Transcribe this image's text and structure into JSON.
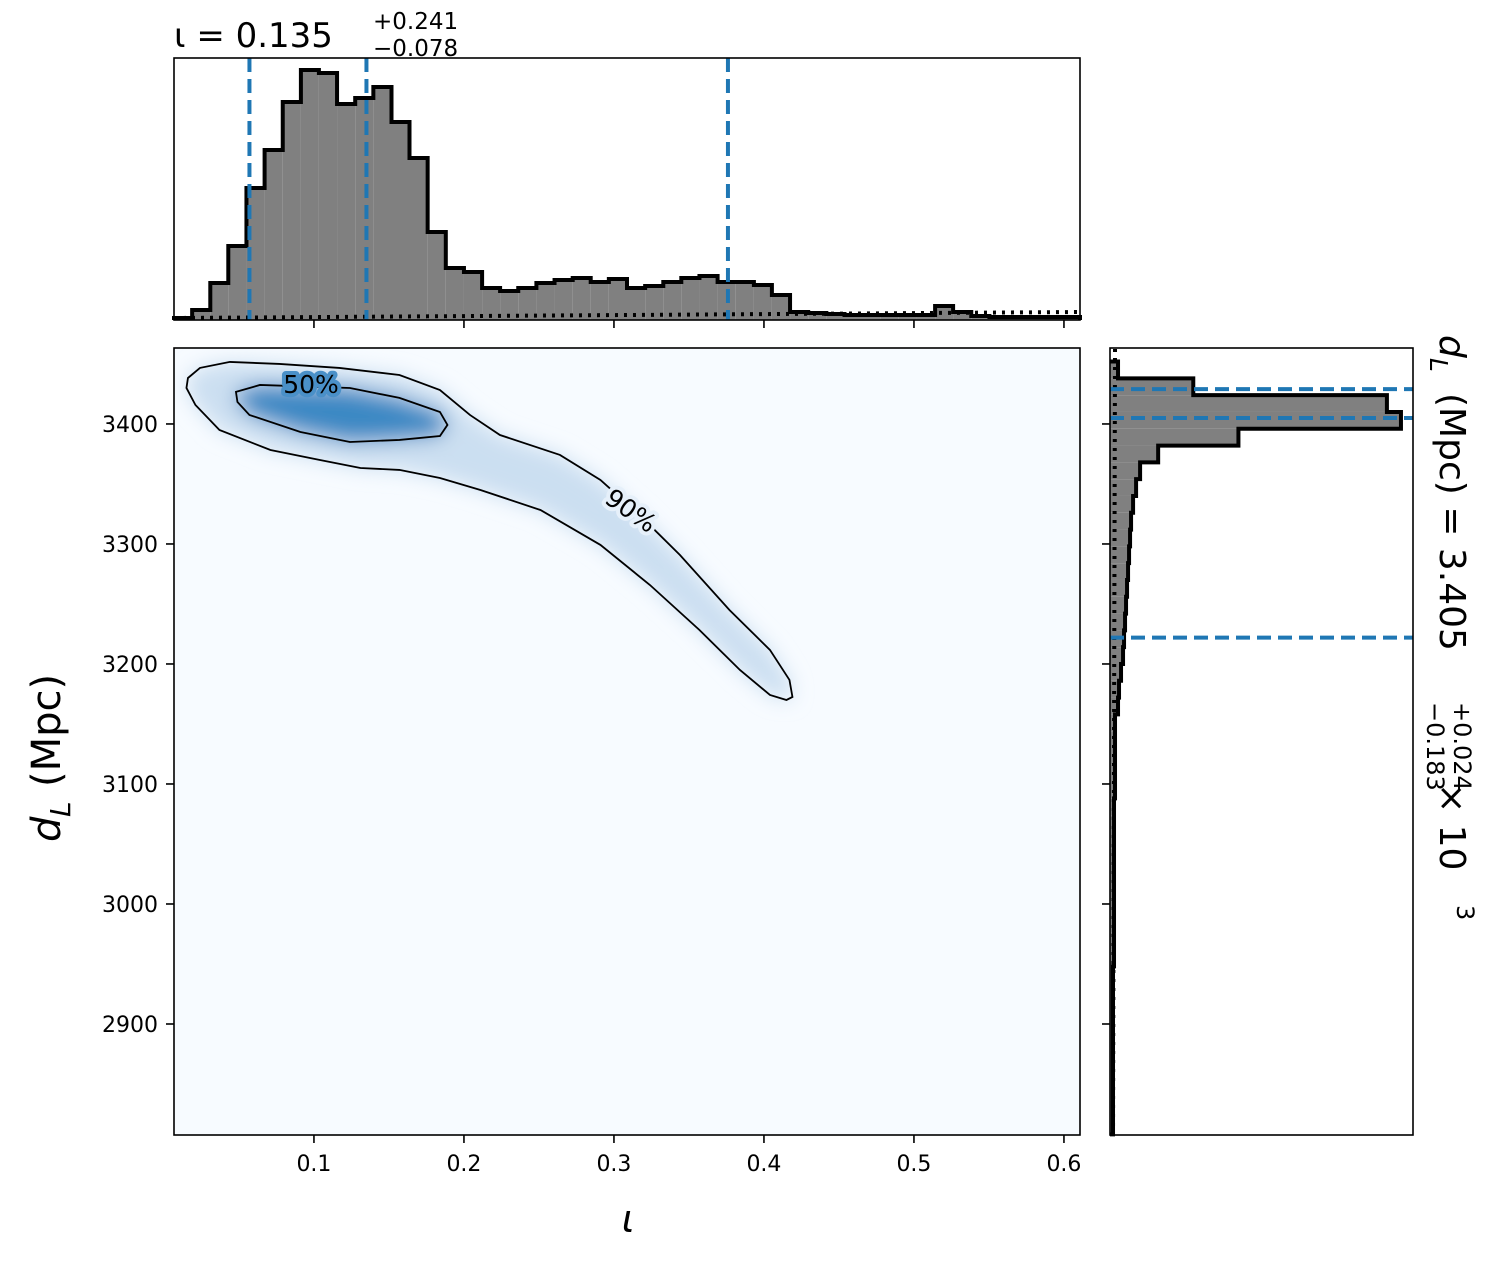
{
  "chart_data": [
    {
      "type": "histogram",
      "title": {
        "text": "ι = 0.135",
        "upper": "+0.241",
        "lower": "−0.078"
      },
      "bins": [
        0.0067,
        0.0188,
        0.0309,
        0.0429,
        0.055,
        0.0671,
        0.0792,
        0.0913,
        0.1033,
        0.1154,
        0.1275,
        0.1396,
        0.1517,
        0.1637,
        0.1758,
        0.1879,
        0.2,
        0.2121,
        0.2241,
        0.2362,
        0.2483,
        0.2604,
        0.2725,
        0.2845,
        0.2966,
        0.3087,
        0.3208,
        0.3329,
        0.3449,
        0.357,
        0.3691,
        0.3812,
        0.3933,
        0.4053,
        0.4174,
        0.4295,
        0.4416,
        0.4537,
        0.4657,
        0.4778,
        0.4899,
        0.502,
        0.5141,
        0.5261,
        0.5382,
        0.5503,
        0.5624,
        0.5745,
        0.5865,
        0.5986,
        0.6107
      ],
      "values": [
        2,
        10,
        37,
        74,
        132,
        170,
        218,
        250,
        247,
        216,
        222,
        233,
        198,
        162,
        88,
        52,
        48,
        32,
        29,
        32,
        37,
        40,
        42,
        38,
        41,
        32,
        34,
        38,
        42,
        44,
        38,
        38,
        35,
        25,
        8,
        7,
        6,
        5,
        5,
        5,
        5,
        5,
        14,
        8,
        4,
        3,
        3,
        3,
        3,
        3
      ],
      "color": "#808080",
      "quantiles": [
        0.057,
        0.135,
        0.376
      ],
      "quantile_color": "#1f77b4",
      "prior": [
        2,
        8
      ],
      "xlim": [
        0.0067,
        0.6107
      ],
      "xticks": [
        0.1,
        0.2,
        0.3,
        0.4,
        0.5,
        0.6
      ],
      "ylim": [
        0,
        262
      ]
    },
    {
      "type": "contour",
      "xlabel": "ι",
      "ylabel": {
        "symbol": "d",
        "subscript": "L",
        "text": "(Mpc)"
      },
      "xlim": [
        0.0067,
        0.6107
      ],
      "xticks": [
        0.1,
        0.2,
        0.3,
        0.4,
        0.5,
        0.6
      ],
      "ylim": [
        2807.5,
        3463.3
      ],
      "yticks": [
        2900,
        3000,
        3100,
        3200,
        3300,
        3400
      ],
      "contours": [
        {
          "label": "90%",
          "color": "#c6dbef",
          "x": [
            0.016,
            0.024,
            0.044,
            0.077,
            0.117,
            0.157,
            0.184,
            0.204,
            0.224,
            0.264,
            0.291,
            0.317,
            0.344,
            0.377,
            0.404,
            0.417,
            0.419,
            0.415,
            0.404,
            0.384,
            0.357,
            0.324,
            0.291,
            0.251,
            0.211,
            0.184,
            0.157,
            0.131,
            0.104,
            0.071,
            0.037,
            0.021,
            0.015
          ],
          "y": [
            3438.3,
            3446.7,
            3451.7,
            3450,
            3446.7,
            3440.8,
            3428.3,
            3407.5,
            3390.8,
            3374.2,
            3353.3,
            3324.2,
            3290.8,
            3245,
            3211.7,
            3186.7,
            3172.5,
            3170,
            3174.2,
            3195,
            3228.3,
            3265.8,
            3299.2,
            3328.3,
            3345,
            3355,
            3361.7,
            3363.3,
            3370,
            3378.3,
            3395,
            3415.8,
            3430
          ]
        },
        {
          "label": "50%",
          "color": "#2c7fc0",
          "x": [
            0.048,
            0.064,
            0.124,
            0.157,
            0.184,
            0.189,
            0.184,
            0.157,
            0.124,
            0.091,
            0.057,
            0.049
          ],
          "y": [
            3426.7,
            3432.5,
            3430,
            3421.7,
            3410,
            3399.2,
            3390,
            3386.7,
            3385,
            3393.3,
            3407.5,
            3418.3
          ]
        }
      ]
    },
    {
      "type": "histogram",
      "orientation": "horizontal",
      "title": {
        "symbol": "d",
        "subscript": "L",
        "text": "(Mpc) = 3.405",
        "upper": "+0.024",
        "lower": "−0.183",
        "scale": "× 10",
        "exponent": "3"
      },
      "bins": [
        2808,
        2822,
        2836,
        2850,
        2864,
        2878,
        2892,
        2906,
        2920,
        2934,
        2948,
        2962,
        2976,
        2990,
        3004,
        3018,
        3032,
        3046,
        3060,
        3074,
        3088,
        3102,
        3116,
        3130,
        3144,
        3158,
        3172,
        3186,
        3200,
        3214,
        3228,
        3242,
        3256,
        3270,
        3284,
        3298,
        3312,
        3326,
        3340,
        3354,
        3368,
        3382,
        3396,
        3410,
        3424,
        3438,
        3452
      ],
      "values": [
        3,
        3,
        3,
        3,
        3,
        3,
        3,
        3,
        3,
        3,
        4,
        4,
        4,
        4,
        4,
        4,
        4,
        4,
        4,
        4,
        5,
        5,
        5,
        5,
        5,
        8,
        9,
        11,
        13,
        14,
        15,
        16,
        17,
        18,
        19,
        20,
        21,
        23,
        26,
        30,
        48,
        128,
        290,
        276,
        83,
        8
      ],
      "color": "#808080",
      "quantiles": [
        3222,
        3405,
        3429
      ],
      "quantile_color": "#1f77b4",
      "prior": [
        3,
        5
      ],
      "xlim": [
        0,
        302
      ],
      "ylim": [
        2807.5,
        3463.3
      ],
      "yticks": [
        2900,
        3000,
        3100,
        3200,
        3300,
        3400
      ]
    }
  ]
}
